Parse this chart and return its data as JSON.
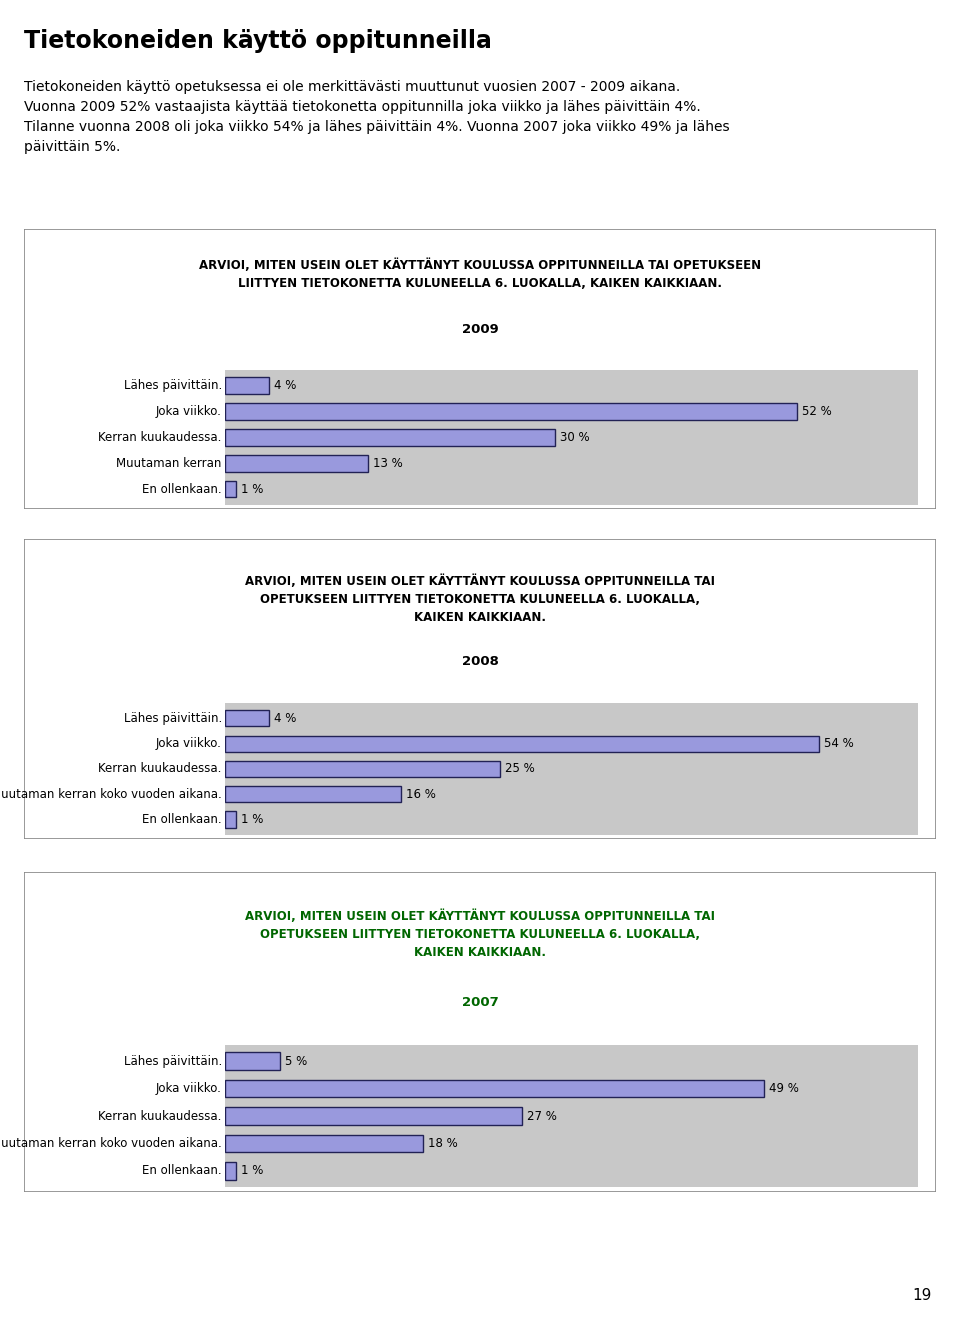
{
  "page_title": "Tietokoneiden käyttö oppitunneilla",
  "page_text_lines": [
    "Tietokoneiden käyttö opetuksessa ei ole merkittävästi muuttunut vuosien 2007 - 2009 aikana.",
    "Vuonna 2009 52% vastaajista käyttää tietokonetta oppitunnilla joka viikko ja lähes päivittäin 4%.",
    "Tilanne vuonna 2008 oli joka viikko 54% ja lähes päivittäin 4%. Vuonna 2007 joka viikko 49% ja lähes",
    "päivittäin 5%."
  ],
  "charts": [
    {
      "title_lines": [
        "ARVIOI, MITEN USEIN OLET KÄYTTÄNYT KOULUSSA OPPITUNNEILLA TAI OPETUKSEEN",
        "LIITTYEN TIETOKONETTA KULUNEELLA 6. LUOKALLA, KAIKEN KAIKKIAAN.",
        "2009"
      ],
      "title_color": "#000000",
      "labels": [
        "Lähes päivittäin.",
        "Joka viikko.",
        "Kerran kuukaudessa.",
        "Muutaman kerran",
        "En ollenkaan."
      ],
      "values": [
        4,
        52,
        30,
        13,
        1
      ],
      "bar_color": "#9999dd",
      "bg_color": "#c8c8c8",
      "border_color": "#888888"
    },
    {
      "title_lines": [
        "ARVIOI, MITEN USEIN OLET KÄYTTÄNYT KOULUSSA OPPITUNNEILLA TAI",
        "OPETUKSEEN LIITTYEN TIETOKONETTA KULUNEELLA 6. LUOKALLA,",
        "KAIKEN KAIKKIAAN.",
        "2008"
      ],
      "title_color": "#000000",
      "labels": [
        "Lähes päivittäin.",
        "Joka viikko.",
        "Kerran kuukaudessa.",
        "Muutaman kerran koko vuoden aikana.",
        "En ollenkaan."
      ],
      "values": [
        4,
        54,
        25,
        16,
        1
      ],
      "bar_color": "#9999dd",
      "bg_color": "#c8c8c8",
      "border_color": "#888888"
    },
    {
      "title_lines": [
        "ARVIOI, MITEN USEIN OLET KÄYTTÄNYT KOULUSSA OPPITUNNEILLA TAI",
        "OPETUKSEEN LIITTYEN TIETOKONETTA KULUNEELLA 6. LUOKALLA,",
        "KAIKEN KAIKKIAAN.",
        "2007"
      ],
      "title_color": "#006600",
      "labels": [
        "Lähes päivittäin.",
        "Joka viikko.",
        "Kerran kuukaudessa.",
        "Muutaman kerran koko vuoden aikana.",
        "En ollenkaan."
      ],
      "values": [
        5,
        49,
        27,
        18,
        1
      ],
      "bar_color": "#9999dd",
      "bg_color": "#c8c8c8",
      "border_color": "#888888"
    }
  ],
  "page_number": "19",
  "bg_page": "#ffffff",
  "max_val": 60
}
